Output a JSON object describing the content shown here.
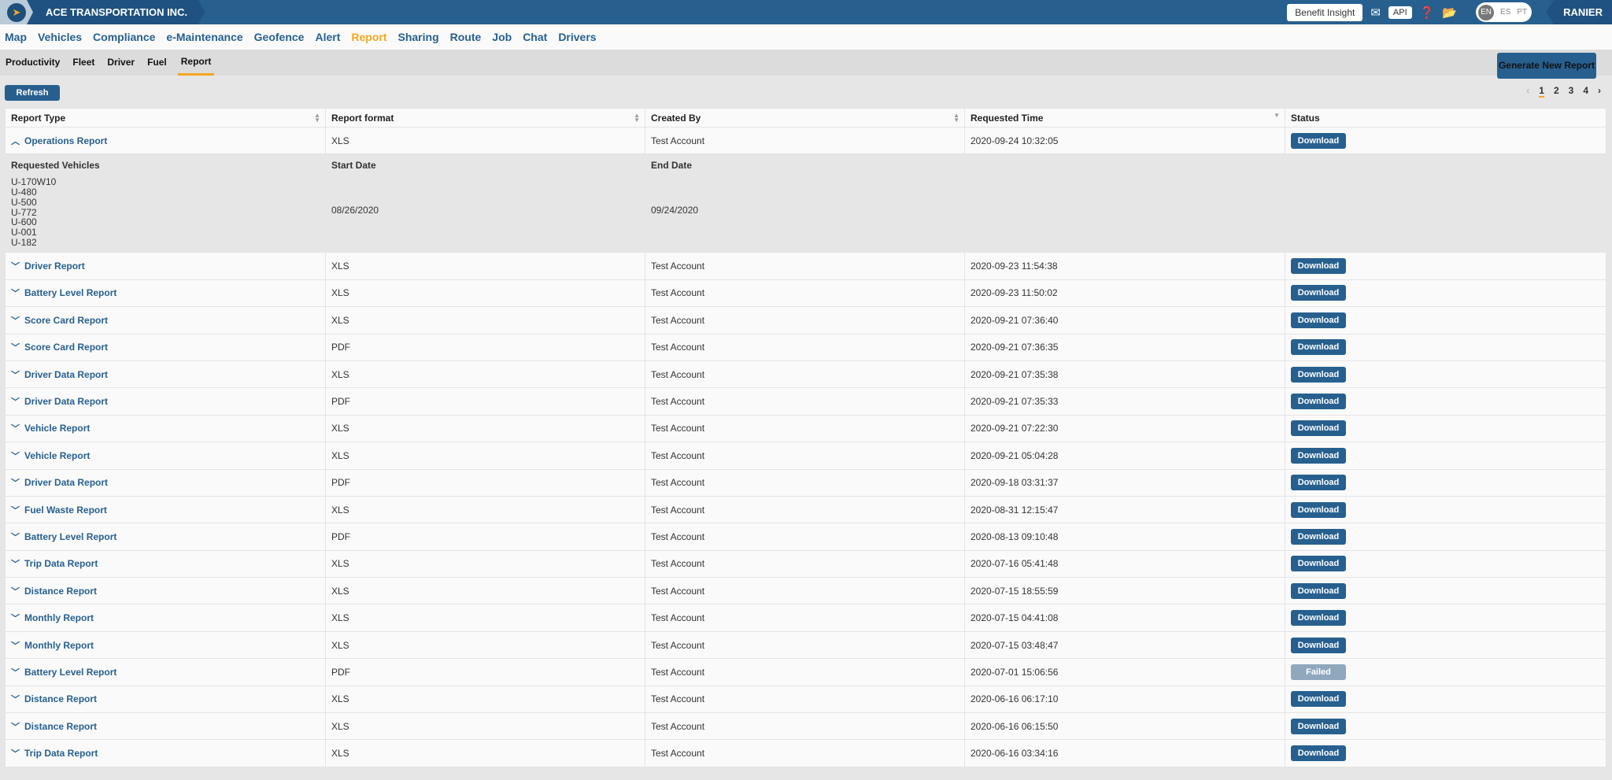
{
  "header": {
    "company": "ACE TRANSPORTATION INC.",
    "benefit": "Benefit Insight",
    "api": "API",
    "langs": [
      "EN",
      "ES",
      "PT"
    ],
    "user": "RANIER"
  },
  "nav": [
    "Map",
    "Vehicles",
    "Compliance",
    "e-Maintenance",
    "Geofence",
    "Alert",
    "Report",
    "Sharing",
    "Route",
    "Job",
    "Chat",
    "Drivers"
  ],
  "nav_active": "Report",
  "subnav": [
    "Productivity",
    "Fleet",
    "Driver",
    "Fuel",
    "Report"
  ],
  "subnav_active": "Report",
  "generate_label": "Generate New Report",
  "refresh_label": "Refresh",
  "pager": {
    "pages": [
      "1",
      "2",
      "3",
      "4"
    ],
    "current": "1"
  },
  "columns": [
    "Report Type",
    "Report format",
    "Created By",
    "Requested Time",
    "Status"
  ],
  "expanded": {
    "type": "Operations Report",
    "format": "XLS",
    "created_by": "Test Account",
    "time": "2020-09-24 10:32:05",
    "status": "Download",
    "vehicles_label": "Requested Vehicles",
    "vehicles": [
      "U-170W10",
      "U-480",
      "U-500",
      "U-772",
      "U-600",
      "U-001",
      "U-182"
    ],
    "start_label": "Start Date",
    "start": "08/26/2020",
    "end_label": "End Date",
    "end": "09/24/2020"
  },
  "rows": [
    [
      "Driver Report",
      "XLS",
      "Test Account",
      "2020-09-23 11:54:38",
      "Download"
    ],
    [
      "Battery Level Report",
      "XLS",
      "Test Account",
      "2020-09-23 11:50:02",
      "Download"
    ],
    [
      "Score Card Report",
      "XLS",
      "Test Account",
      "2020-09-21 07:36:40",
      "Download"
    ],
    [
      "Score Card Report",
      "PDF",
      "Test Account",
      "2020-09-21 07:36:35",
      "Download"
    ],
    [
      "Driver Data Report",
      "XLS",
      "Test Account",
      "2020-09-21 07:35:38",
      "Download"
    ],
    [
      "Driver Data Report",
      "PDF",
      "Test Account",
      "2020-09-21 07:35:33",
      "Download"
    ],
    [
      "Vehicle Report",
      "XLS",
      "Test Account",
      "2020-09-21 07:22:30",
      "Download"
    ],
    [
      "Vehicle Report",
      "XLS",
      "Test Account",
      "2020-09-21 05:04:28",
      "Download"
    ],
    [
      "Driver Data Report",
      "PDF",
      "Test Account",
      "2020-09-18 03:31:37",
      "Download"
    ],
    [
      "Fuel Waste Report",
      "XLS",
      "Test Account",
      "2020-08-31 12:15:47",
      "Download"
    ],
    [
      "Battery Level Report",
      "PDF",
      "Test Account",
      "2020-08-13 09:10:48",
      "Download"
    ],
    [
      "Trip Data Report",
      "XLS",
      "Test Account",
      "2020-07-16 05:41:48",
      "Download"
    ],
    [
      "Distance Report",
      "XLS",
      "Test Account",
      "2020-07-15 18:55:59",
      "Download"
    ],
    [
      "Monthly Report",
      "XLS",
      "Test Account",
      "2020-07-15 04:41:08",
      "Download"
    ],
    [
      "Monthly Report",
      "XLS",
      "Test Account",
      "2020-07-15 03:48:47",
      "Download"
    ],
    [
      "Battery Level Report",
      "PDF",
      "Test Account",
      "2020-07-01 15:06:56",
      "Failed"
    ],
    [
      "Distance Report",
      "XLS",
      "Test Account",
      "2020-06-16 06:17:10",
      "Download"
    ],
    [
      "Distance Report",
      "XLS",
      "Test Account",
      "2020-06-16 06:15:50",
      "Download"
    ],
    [
      "Trip Data Report",
      "XLS",
      "Test Account",
      "2020-06-16 03:34:16",
      "Download"
    ]
  ]
}
